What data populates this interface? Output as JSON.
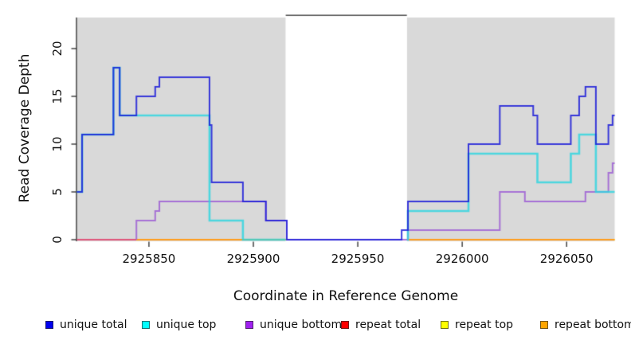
{
  "chart_data": {
    "type": "line",
    "subtype": "step-coverage",
    "title": "",
    "xlabel": "Coordinate in Reference Genome",
    "ylabel": "Read Coverage Depth",
    "xlim": [
      2925815.5,
      2926073
    ],
    "ylim": [
      0,
      23.3
    ],
    "x_ticks": [
      2925850,
      2925900,
      2925950,
      2926000,
      2926050
    ],
    "y_ticks": [
      0,
      5,
      10,
      15,
      20
    ],
    "grid": false,
    "legend_position": "bottom",
    "panel_background": "#d9d9d9",
    "covered_regions": [
      {
        "x0": 2925815.5,
        "x1": 2925915.5
      },
      {
        "x0": 2925973.5,
        "x1": 2926073
      }
    ],
    "gap_region": {
      "x0": 2925915.5,
      "x1": 2925973.5,
      "fill": "#ffffff",
      "top_border_color": "#4d4d4d"
    },
    "axis_color": "#262626",
    "series": [
      {
        "name": "repeat total",
        "legend_color": "#ff0000",
        "line_color": "#e0557a",
        "line_width": 2,
        "opacity": 1,
        "segments": [
          [
            [
              2925815.5,
              0
            ],
            [
              2925915.5,
              0
            ]
          ]
        ]
      },
      {
        "name": "repeat top",
        "legend_color": "#ffff00",
        "line_color": "#ffee00",
        "line_width": 2,
        "opacity": 1,
        "segments": [
          [
            [
              2925844,
              0
            ],
            [
              2925915.5,
              0
            ]
          ],
          [
            [
              2925973.5,
              0
            ],
            [
              2926073,
              0
            ]
          ]
        ]
      },
      {
        "name": "repeat bottom",
        "legend_color": "#ffa500",
        "line_color": "#ff9d1d",
        "line_width": 2.2,
        "opacity": 1,
        "segments": [
          [
            [
              2925844,
              0
            ],
            [
              2925915.5,
              0
            ]
          ],
          [
            [
              2925973.5,
              0
            ],
            [
              2926073,
              0
            ]
          ]
        ]
      },
      {
        "name": "unique bottom",
        "legend_color": "#a020f0",
        "line_color": "#9d5fd3",
        "line_width": 2,
        "opacity": 0.85,
        "segments": [
          [
            [
              2925844,
              0
            ],
            [
              2925844,
              2
            ],
            [
              2925853,
              3
            ],
            [
              2925855,
              4
            ],
            [
              2925906,
              2
            ],
            [
              2925916,
              0
            ],
            [
              2925974,
              1
            ],
            [
              2926018,
              5
            ],
            [
              2926030,
              4
            ],
            [
              2926059,
              5
            ],
            [
              2926070,
              7
            ],
            [
              2926072,
              8
            ],
            [
              2926073,
              8
            ]
          ]
        ]
      },
      {
        "name": "unique top",
        "legend_color": "#00ffff",
        "line_color": "#2ad5e0",
        "line_width": 2.6,
        "opacity": 0.8,
        "segments": [
          [
            [
              2925815.5,
              5
            ],
            [
              2925818,
              11
            ],
            [
              2925833,
              18
            ],
            [
              2925836,
              13
            ],
            [
              2925879,
              2
            ],
            [
              2925895,
              0
            ],
            [
              2925915.5,
              0
            ]
          ],
          [
            [
              2925973.5,
              0
            ],
            [
              2925974,
              3
            ],
            [
              2926003,
              9
            ],
            [
              2926036,
              6
            ],
            [
              2926052,
              9
            ],
            [
              2926056,
              11
            ],
            [
              2926064,
              5
            ],
            [
              2926073,
              5
            ]
          ]
        ]
      },
      {
        "name": "unique total",
        "legend_color": "#0000ee",
        "line_color": "#1b1bd8",
        "line_width": 2,
        "opacity": 0.85,
        "segments": [
          [
            [
              2925815.5,
              5
            ],
            [
              2925818,
              11
            ],
            [
              2925833,
              18
            ],
            [
              2925836,
              13
            ],
            [
              2925844,
              15
            ],
            [
              2925853,
              16
            ],
            [
              2925855,
              17
            ],
            [
              2925879,
              12
            ],
            [
              2925880,
              6
            ],
            [
              2925895,
              4
            ],
            [
              2925906,
              2
            ],
            [
              2925916,
              0
            ],
            [
              2925971,
              1
            ],
            [
              2925974,
              4
            ],
            [
              2926003,
              10
            ],
            [
              2926018,
              14
            ],
            [
              2926034,
              13
            ],
            [
              2926036,
              10
            ],
            [
              2926052,
              13
            ],
            [
              2926056,
              15
            ],
            [
              2926059,
              16
            ],
            [
              2926064,
              10
            ],
            [
              2926070,
              12
            ],
            [
              2926072,
              13
            ],
            [
              2926073,
              13
            ]
          ]
        ]
      }
    ],
    "legend": [
      {
        "label": "unique total",
        "color": "#0000ee"
      },
      {
        "label": "unique top",
        "color": "#00ffff"
      },
      {
        "label": "unique bottom",
        "color": "#a020f0"
      },
      {
        "label": "repeat total",
        "color": "#ff0000"
      },
      {
        "label": "repeat top",
        "color": "#ffff00"
      },
      {
        "label": "repeat bottom",
        "color": "#ffa500"
      }
    ]
  }
}
